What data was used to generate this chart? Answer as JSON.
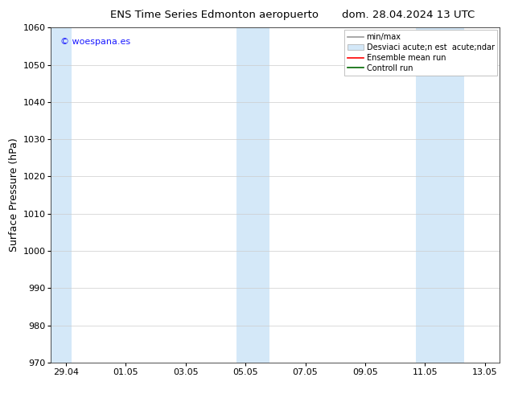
{
  "title_left": "ENS Time Series Edmonton aeropuerto",
  "title_right": "dom. 28.04.2024 13 UTC",
  "ylabel": "Surface Pressure (hPa)",
  "ylim": [
    970,
    1060
  ],
  "yticks": [
    970,
    980,
    990,
    1000,
    1010,
    1020,
    1030,
    1040,
    1050,
    1060
  ],
  "xtick_labels": [
    "29.04",
    "01.05",
    "03.05",
    "05.05",
    "07.05",
    "09.05",
    "11.05",
    "13.05"
  ],
  "xtick_positions": [
    0,
    2,
    4,
    6,
    8,
    10,
    12,
    14
  ],
  "xlim": [
    -0.5,
    14.5
  ],
  "watermark": "© woespana.es",
  "watermark_color": "#1a1aff",
  "background_color": "#ffffff",
  "plot_bg_color": "#ffffff",
  "shaded_bands": [
    {
      "x_start": -0.5,
      "x_end": 0.2,
      "color": "#d4e8f8"
    },
    {
      "x_start": 5.7,
      "x_end": 6.8,
      "color": "#d4e8f8"
    },
    {
      "x_start": 11.7,
      "x_end": 13.3,
      "color": "#d4e8f8"
    }
  ],
  "legend_entries": [
    {
      "label": "min/max",
      "color": "#999999",
      "lw": 1.2,
      "type": "line"
    },
    {
      "label": "Desviaci acute;n est  acute;ndar",
      "color": "#d4e8f8",
      "lw": 8,
      "type": "band"
    },
    {
      "label": "Ensemble mean run",
      "color": "#ff0000",
      "lw": 1.2,
      "type": "line"
    },
    {
      "label": "Controll run",
      "color": "#006600",
      "lw": 1.2,
      "type": "line"
    }
  ],
  "title_fontsize": 9.5,
  "tick_fontsize": 8,
  "ylabel_fontsize": 9,
  "watermark_fontsize": 8,
  "legend_fontsize": 7
}
